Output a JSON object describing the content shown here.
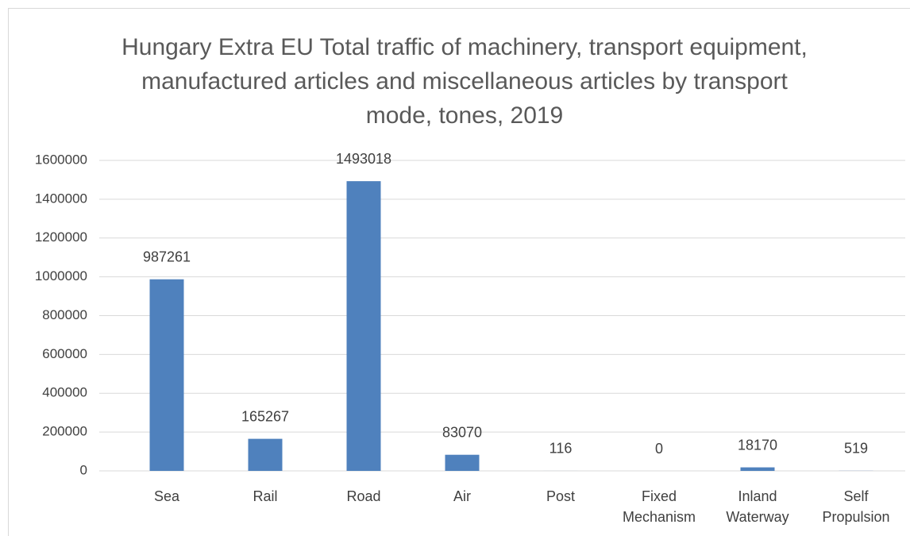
{
  "chart_data": {
    "type": "bar",
    "title": "Hungary Extra EU Total traffic of machinery, transport equipment, manufactured articles and miscellaneous articles by transport mode, tones, 2019",
    "categories": [
      "Sea",
      "Rail",
      "Road",
      "Air",
      "Post",
      "Fixed Mechanism",
      "Inland Waterway",
      "Self Propulsion"
    ],
    "values": [
      987261,
      165267,
      1493018,
      83070,
      116,
      0,
      18170,
      519
    ],
    "color": "#4f81bd",
    "ylim": [
      0,
      1600000
    ],
    "yticks": [
      0,
      200000,
      400000,
      600000,
      800000,
      1000000,
      1200000,
      1400000,
      1600000
    ],
    "grid": true
  }
}
